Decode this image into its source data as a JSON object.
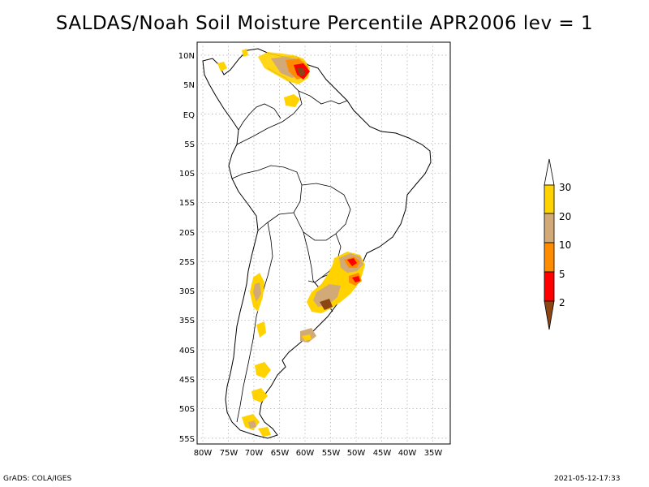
{
  "title": "SALDAS/Noah Soil Moisture Percentile APR2006 lev = 1",
  "axes": {
    "lat_labels": [
      "10N",
      "5N",
      "EQ",
      "5S",
      "10S",
      "15S",
      "20S",
      "25S",
      "30S",
      "35S",
      "40S",
      "45S",
      "50S",
      "55S"
    ],
    "lon_labels": [
      "80W",
      "75W",
      "70W",
      "65W",
      "60W",
      "55W",
      "50W",
      "45W",
      "40W",
      "35W"
    ]
  },
  "colorbar": {
    "labels": [
      "30",
      "20",
      "10",
      "5",
      "2"
    ],
    "colors": {
      "above_30": "#ffffff",
      "20_30": "#ffd200",
      "10_20": "#d2aa78",
      "5_10": "#ff8c00",
      "2_5": "#ff0000",
      "below_2": "#8c4614"
    }
  },
  "footer": {
    "left": "GrADS: COLA/IGES",
    "right": "2021-05-12-17:33"
  }
}
